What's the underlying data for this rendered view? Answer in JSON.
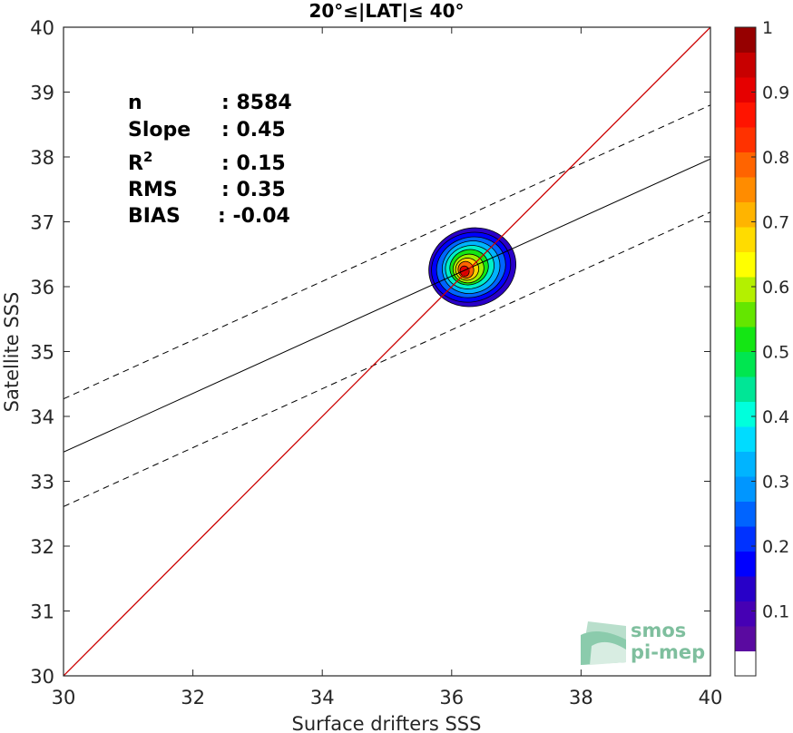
{
  "chart_data": {
    "type": "scatter",
    "title": "20°≤|LAT|≤ 40°",
    "xlabel": "Surface drifters SSS",
    "ylabel": "Satellite SSS",
    "xlim": [
      30,
      40
    ],
    "ylim": [
      30,
      40
    ],
    "xticks": [
      "30",
      "32",
      "34",
      "36",
      "38",
      "40"
    ],
    "yticks": [
      "30",
      "31",
      "32",
      "33",
      "34",
      "35",
      "36",
      "37",
      "38",
      "39",
      "40"
    ],
    "grid": false,
    "stats": [
      {
        "label": "n",
        "value": ": 8584"
      },
      {
        "label": "Slope",
        "value": ": 0.45"
      },
      {
        "label": "R",
        "sup": "2",
        "value": ": 0.15"
      },
      {
        "label": "RMS",
        "value": ": 0.35"
      },
      {
        "label": "BIAS",
        "value": ": -0.04"
      }
    ],
    "lines": {
      "one_to_one": {
        "color": "#cc0000",
        "points": [
          [
            30,
            30
          ],
          [
            40,
            40
          ]
        ]
      },
      "regression": {
        "color": "#000000",
        "style": "solid",
        "points": [
          [
            30,
            33.45
          ],
          [
            40,
            37.97
          ]
        ]
      },
      "upper_bound": {
        "color": "#000000",
        "style": "dashed",
        "points": [
          [
            30,
            34.27
          ],
          [
            40,
            38.8
          ]
        ]
      },
      "lower_bound": {
        "color": "#000000",
        "style": "dashed",
        "points": [
          [
            30,
            32.61
          ],
          [
            40,
            37.15
          ]
        ]
      }
    },
    "density_contours": [
      {
        "level": 0.05,
        "color": "#2a00c8",
        "cx": 36.32,
        "cy": 36.3,
        "rx": 0.68,
        "ry": 0.6
      },
      {
        "level": 0.1,
        "color": "#0000ff",
        "cx": 36.3,
        "cy": 36.3,
        "rx": 0.62,
        "ry": 0.53
      },
      {
        "level": 0.2,
        "color": "#0064ff",
        "cx": 36.3,
        "cy": 36.3,
        "rx": 0.54,
        "ry": 0.46
      },
      {
        "level": 0.3,
        "color": "#00b4ff",
        "cx": 36.3,
        "cy": 36.3,
        "rx": 0.45,
        "ry": 0.4
      },
      {
        "level": 0.4,
        "color": "#00f0c8",
        "cx": 36.28,
        "cy": 36.3,
        "rx": 0.38,
        "ry": 0.33
      },
      {
        "level": 0.5,
        "color": "#14e614",
        "cx": 36.27,
        "cy": 36.3,
        "rx": 0.3,
        "ry": 0.27
      },
      {
        "level": 0.6,
        "color": "#a0f000",
        "cx": 36.26,
        "cy": 36.28,
        "rx": 0.24,
        "ry": 0.22
      },
      {
        "level": 0.7,
        "color": "#ffd200",
        "cx": 36.24,
        "cy": 36.27,
        "rx": 0.18,
        "ry": 0.17
      },
      {
        "level": 0.8,
        "color": "#ff6400",
        "cx": 36.22,
        "cy": 36.26,
        "rx": 0.12,
        "ry": 0.13
      },
      {
        "level": 0.9,
        "color": "#e60000",
        "cx": 36.2,
        "cy": 36.24,
        "rx": 0.07,
        "ry": 0.08
      }
    ],
    "colorbar": {
      "range": [
        0,
        1
      ],
      "ticks": [
        "0.1",
        "0.2",
        "0.3",
        "0.4",
        "0.5",
        "0.6",
        "0.7",
        "0.8",
        "0.9",
        "1"
      ],
      "colors": [
        "#ffffff",
        "#5a0aa0",
        "#4600b4",
        "#2800c8",
        "#0000ff",
        "#0032ff",
        "#0064ff",
        "#0096ff",
        "#00b4ff",
        "#00dcff",
        "#00ffdc",
        "#00e696",
        "#00e650",
        "#14e614",
        "#64e600",
        "#b4f000",
        "#ffff00",
        "#ffdc00",
        "#ffb400",
        "#ff8c00",
        "#ff6400",
        "#ff3200",
        "#ff1400",
        "#e60000",
        "#c80000",
        "#960000"
      ]
    }
  },
  "logo": {
    "line1": "smos",
    "line2": "pi-mep"
  }
}
